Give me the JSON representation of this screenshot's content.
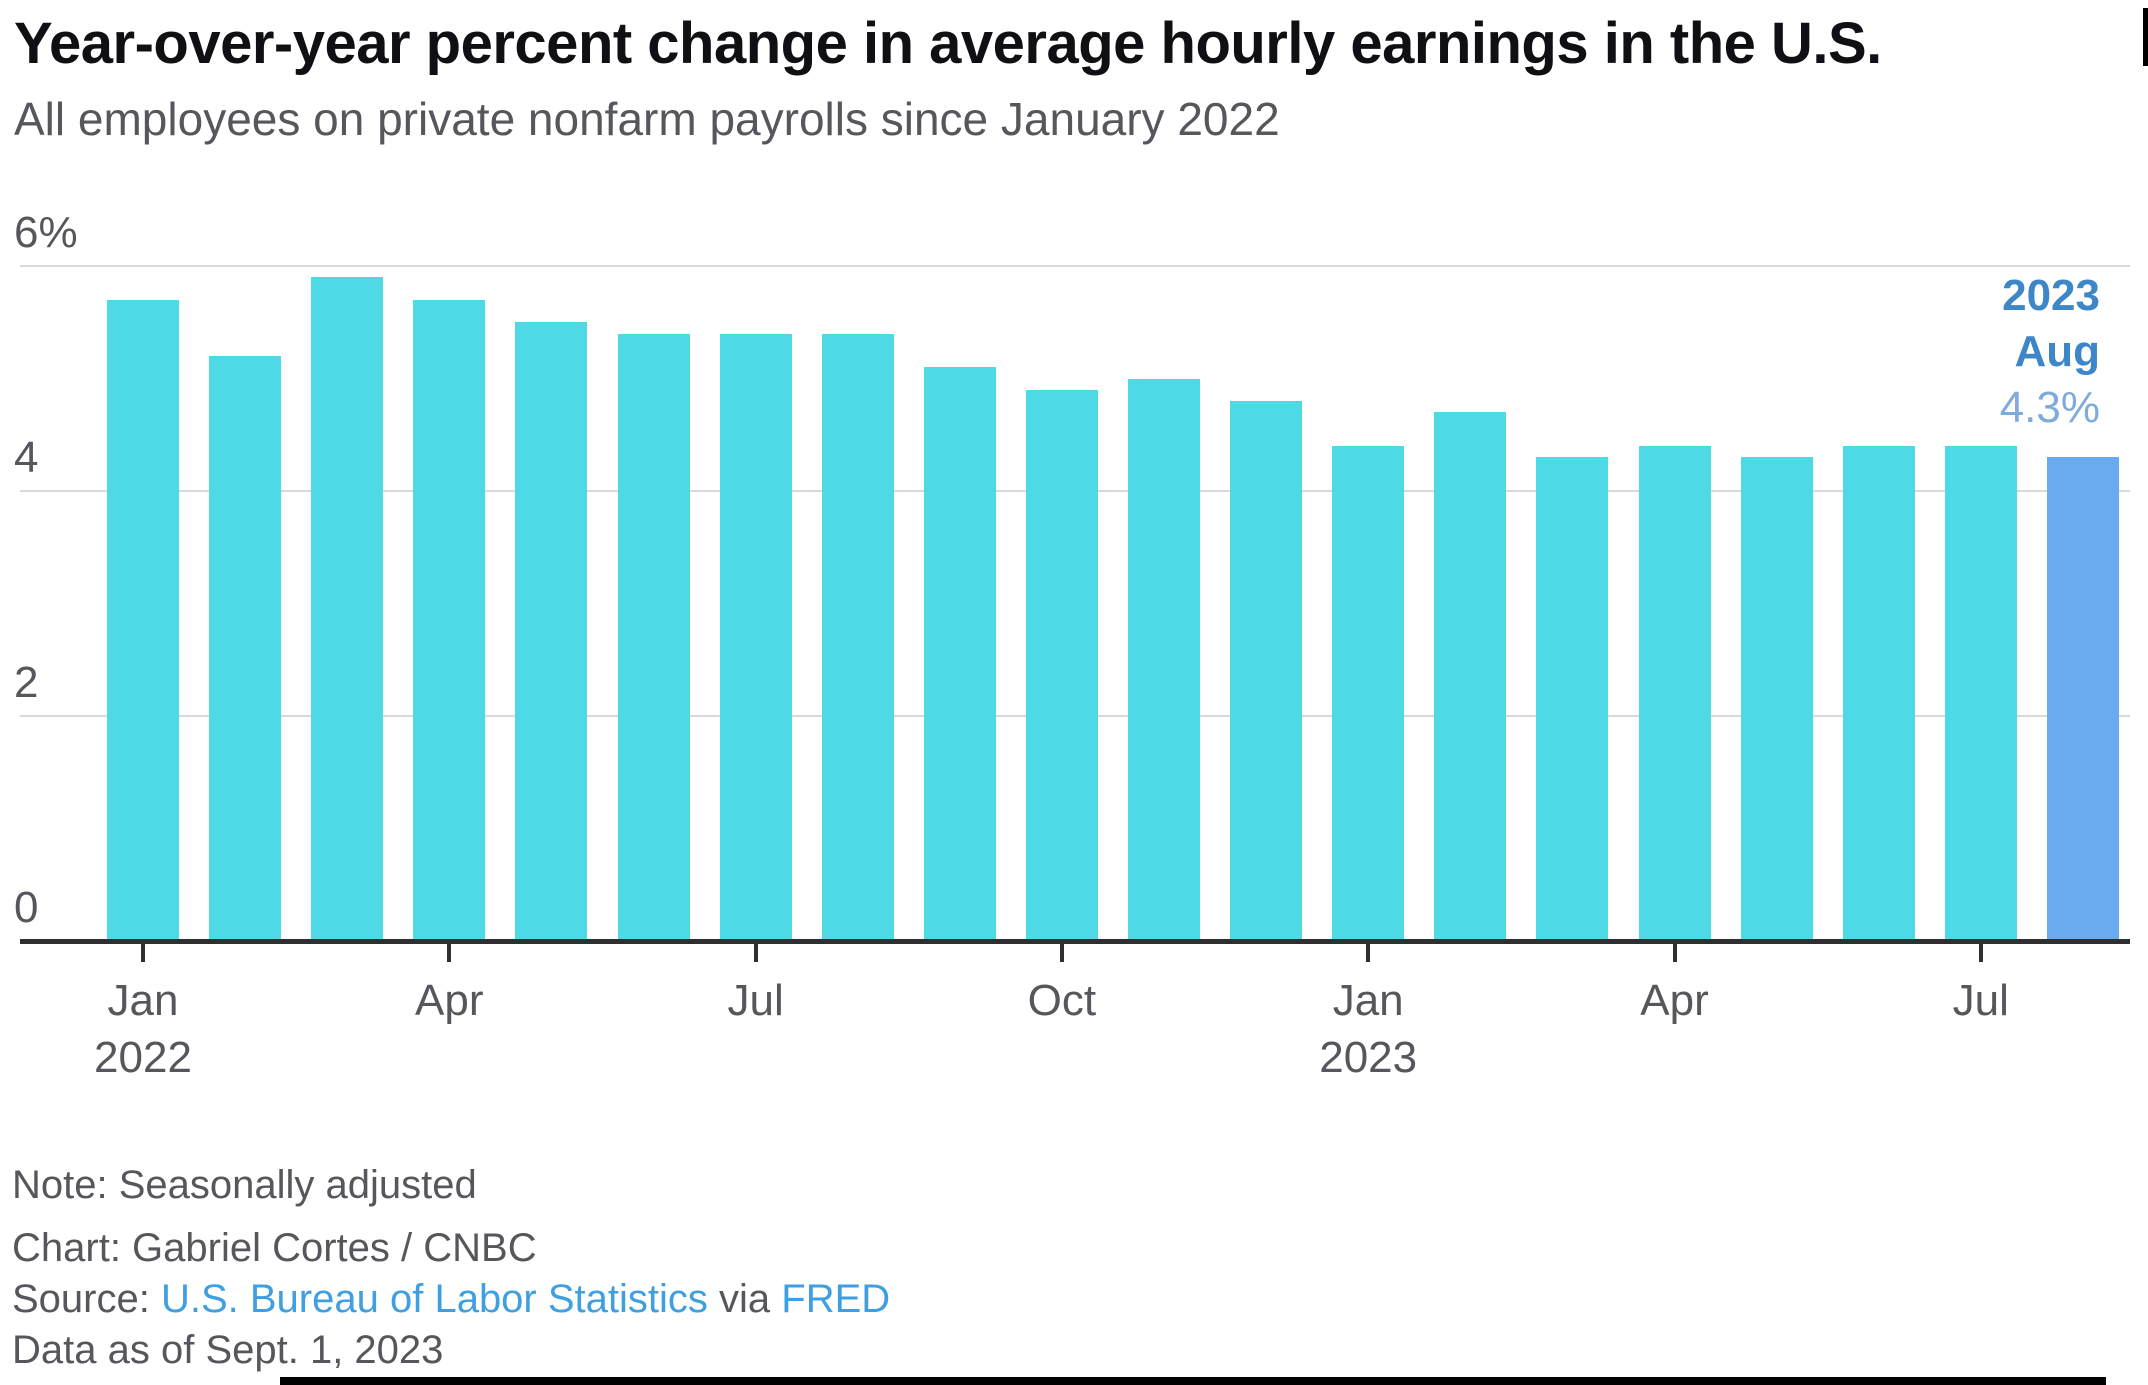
{
  "header": {
    "title": "Year-over-year percent change in average hourly earnings in the U.S.",
    "subtitle": "All employees on private nonfarm payrolls since January 2022"
  },
  "chart_data": {
    "type": "bar",
    "title": "Year-over-year percent change in average hourly earnings in the U.S.",
    "subtitle": "All employees on private nonfarm payrolls since January 2022",
    "categories": [
      "Jan 2022",
      "Feb 2022",
      "Mar 2022",
      "Apr 2022",
      "May 2022",
      "Jun 2022",
      "Jul 2022",
      "Aug 2022",
      "Sep 2022",
      "Oct 2022",
      "Nov 2022",
      "Dec 2022",
      "Jan 2023",
      "Feb 2023",
      "Mar 2023",
      "Apr 2023",
      "May 2023",
      "Jun 2023",
      "Jul 2023",
      "Aug 2023"
    ],
    "values": [
      5.7,
      5.2,
      5.9,
      5.7,
      5.5,
      5.4,
      5.4,
      5.4,
      5.1,
      4.9,
      5.0,
      4.8,
      4.4,
      4.7,
      4.3,
      4.4,
      4.3,
      4.4,
      4.4,
      4.3
    ],
    "unit": "%",
    "ylim": [
      0,
      6.2
    ],
    "grid": "horizontal",
    "y_tick_labels": [
      "6%",
      "4",
      "2",
      "0"
    ],
    "y_tick_values": [
      6,
      4,
      2,
      0
    ],
    "x_ticks": [
      {
        "index": 0,
        "month": "Jan",
        "year": "2022"
      },
      {
        "index": 3,
        "month": "Apr",
        "year": ""
      },
      {
        "index": 6,
        "month": "Jul",
        "year": ""
      },
      {
        "index": 9,
        "month": "Oct",
        "year": ""
      },
      {
        "index": 12,
        "month": "Jan",
        "year": "2023"
      },
      {
        "index": 15,
        "month": "Apr",
        "year": ""
      },
      {
        "index": 18,
        "month": "Jul",
        "year": ""
      }
    ],
    "highlight_index": 19,
    "annotation": {
      "line1": "2023",
      "line2": "Aug",
      "line3": "4.3%"
    },
    "legend": "none"
  },
  "colors": {
    "bar": "#4ed9e6",
    "bar_highlight": "#6aaaf0",
    "annotation_strong": "#3d87c9",
    "annotation_value": "#7fabdb",
    "gridline": "#d9d9d9",
    "axis": "#2f2f31",
    "text_muted": "#55575c",
    "link": "#3f9fe0",
    "title_text": "#101014"
  },
  "footer": {
    "note": "Note: Seasonally adjusted",
    "credit": "Chart: Gabriel Cortes / CNBC",
    "source_prefix": "Source: ",
    "source_link1": "U.S. Bureau of Labor Statistics",
    "source_via": " via ",
    "source_link2": "FRED",
    "data_as_of": "Data as of Sept. 1, 2023"
  }
}
